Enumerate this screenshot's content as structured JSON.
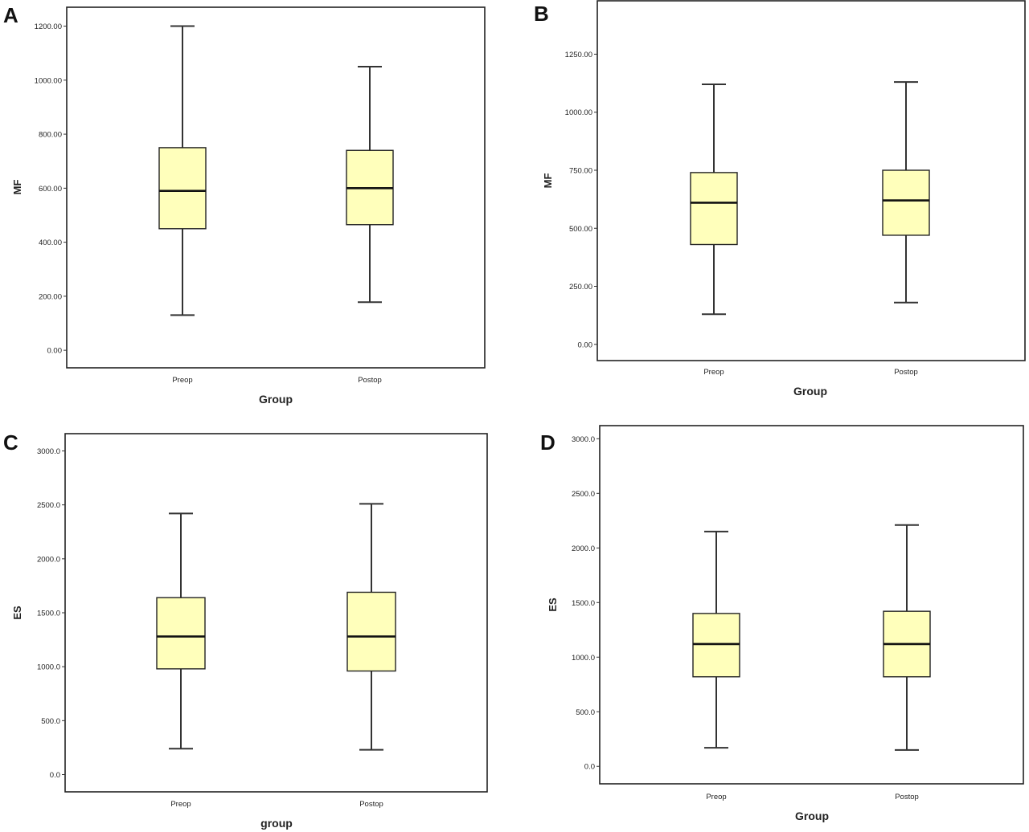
{
  "box_color": "#FFFFBB",
  "chart_data": [
    {
      "panel": "A",
      "type": "boxplot",
      "xlabel": "Group",
      "ylabel": "MF",
      "categories": [
        "Preop",
        "Postop"
      ],
      "yticks": [
        "0.00",
        "200.00",
        "400.00",
        "600.00",
        "800.00",
        "1000.00",
        "1200.00"
      ],
      "ylim": [
        -65,
        1270
      ],
      "boxes": [
        {
          "category": "Preop",
          "min": 130,
          "q1": 450,
          "median": 590,
          "q3": 750,
          "max": 1200
        },
        {
          "category": "Postop",
          "min": 178,
          "q1": 465,
          "median": 600,
          "q3": 740,
          "max": 1050
        }
      ]
    },
    {
      "panel": "B",
      "type": "boxplot",
      "xlabel": "Group",
      "ylabel": "MF",
      "categories": [
        "Preop",
        "Postop"
      ],
      "yticks": [
        "0.00",
        "250.00",
        "500.00",
        "750.00",
        "1000.00",
        "1250.00"
      ],
      "ylim": [
        -70,
        1480
      ],
      "boxes": [
        {
          "category": "Preop",
          "min": 130,
          "q1": 430,
          "median": 610,
          "q3": 740,
          "max": 1120
        },
        {
          "category": "Postop",
          "min": 180,
          "q1": 470,
          "median": 620,
          "q3": 750,
          "max": 1130
        }
      ]
    },
    {
      "panel": "C",
      "type": "boxplot",
      "xlabel": "group",
      "ylabel": "ES",
      "categories": [
        "Preop",
        "Postop"
      ],
      "yticks": [
        "0.0",
        "500.0",
        "1000.0",
        "1500.0",
        "2000.0",
        "2500.0",
        "3000.0"
      ],
      "ylim": [
        -160,
        3160
      ],
      "boxes": [
        {
          "category": "Preop",
          "min": 240,
          "q1": 980,
          "median": 1280,
          "q3": 1640,
          "max": 2420
        },
        {
          "category": "Postop",
          "min": 230,
          "q1": 960,
          "median": 1280,
          "q3": 1690,
          "max": 2510
        }
      ]
    },
    {
      "panel": "D",
      "type": "boxplot",
      "xlabel": "Group",
      "ylabel": "ES",
      "categories": [
        "Preop",
        "Postop"
      ],
      "yticks": [
        "0.0",
        "500.0",
        "1000.0",
        "1500.0",
        "2000.0",
        "2500.0",
        "3000.0"
      ],
      "ylim": [
        -160,
        3120
      ],
      "boxes": [
        {
          "category": "Preop",
          "min": 170,
          "q1": 820,
          "median": 1120,
          "q3": 1400,
          "max": 2150
        },
        {
          "category": "Postop",
          "min": 150,
          "q1": 820,
          "median": 1120,
          "q3": 1420,
          "max": 2210
        }
      ]
    }
  ]
}
